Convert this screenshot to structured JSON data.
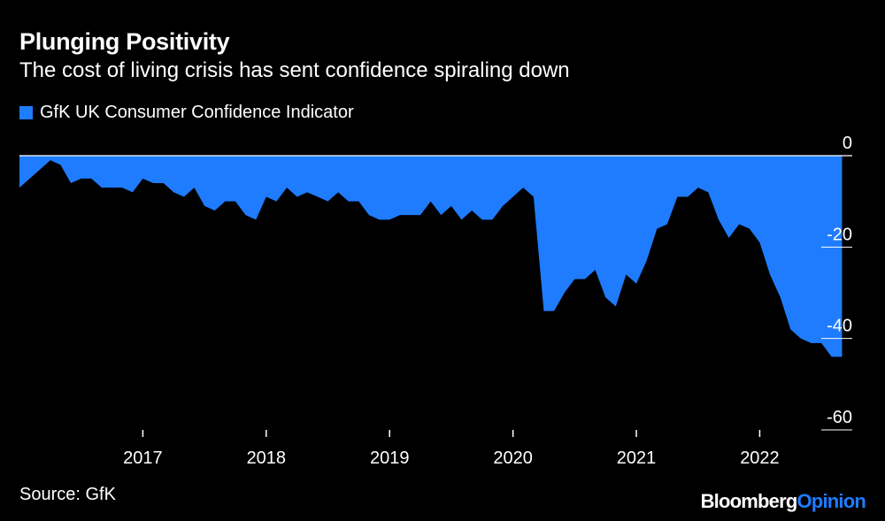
{
  "colors": {
    "background": "#000000",
    "series": "#1f7cff",
    "text": "#ffffff",
    "brand_accent": "#1f7cff"
  },
  "title": "Plunging Positivity",
  "subtitle": "The cost of living crisis has sent confidence spiraling down",
  "legend": {
    "label": "GfK UK Consumer Confidence Indicator"
  },
  "source": "Source: GfK",
  "brand": {
    "part1": "Bloomberg",
    "part2": "Opinion"
  },
  "chart_data": {
    "type": "area",
    "title": "Plunging Positivity",
    "subtitle": "The cost of living crisis has sent confidence spiraling down",
    "xlabel": "",
    "ylabel": "",
    "ylim": [
      -60,
      0
    ],
    "xlim": [
      2016.0,
      2022.75
    ],
    "y_ticks": [
      0,
      -20,
      -40,
      -60
    ],
    "y_tick_labels": [
      "0",
      "-20",
      "-40",
      "-60"
    ],
    "x_ticks": [
      2017,
      2018,
      2019,
      2020,
      2021,
      2022
    ],
    "x_tick_labels": [
      "2017",
      "2018",
      "2019",
      "2020",
      "2021",
      "2022"
    ],
    "series": [
      {
        "name": "GfK UK Consumer Confidence Indicator",
        "x": [
          2016.0,
          2016.083,
          2016.167,
          2016.25,
          2016.333,
          2016.417,
          2016.5,
          2016.583,
          2016.667,
          2016.75,
          2016.833,
          2016.917,
          2017.0,
          2017.083,
          2017.167,
          2017.25,
          2017.333,
          2017.417,
          2017.5,
          2017.583,
          2017.667,
          2017.75,
          2017.833,
          2017.917,
          2018.0,
          2018.083,
          2018.167,
          2018.25,
          2018.333,
          2018.417,
          2018.5,
          2018.583,
          2018.667,
          2018.75,
          2018.833,
          2018.917,
          2019.0,
          2019.083,
          2019.167,
          2019.25,
          2019.333,
          2019.417,
          2019.5,
          2019.583,
          2019.667,
          2019.75,
          2019.833,
          2019.917,
          2020.0,
          2020.083,
          2020.167,
          2020.25,
          2020.333,
          2020.417,
          2020.5,
          2020.583,
          2020.667,
          2020.75,
          2020.833,
          2020.917,
          2021.0,
          2021.083,
          2021.167,
          2021.25,
          2021.333,
          2021.417,
          2021.5,
          2021.583,
          2021.667,
          2021.75,
          2021.833,
          2021.917,
          2022.0,
          2022.083,
          2022.167,
          2022.25,
          2022.333,
          2022.417,
          2022.5,
          2022.583,
          2022.667
        ],
        "values": [
          -7,
          -5,
          -3,
          -1,
          -2,
          -6,
          -5,
          -5,
          -7,
          -7,
          -7,
          -8,
          -5,
          -6,
          -6,
          -8,
          -9,
          -7,
          -11,
          -12,
          -10,
          -10,
          -13,
          -14,
          -9,
          -10,
          -7,
          -9,
          -8,
          -9,
          -10,
          -8,
          -10,
          -10,
          -13,
          -14,
          -14,
          -13,
          -13,
          -13,
          -10,
          -13,
          -11,
          -14,
          -12,
          -14,
          -14,
          -11,
          -9,
          -7,
          -9,
          -34,
          -34,
          -30,
          -27,
          -27,
          -25,
          -31,
          -33,
          -26,
          -28,
          -23,
          -16,
          -15,
          -9,
          -9,
          -7,
          -8,
          -14,
          -18,
          -15,
          -16,
          -19,
          -26,
          -31,
          -38,
          -40,
          -41,
          -41,
          -44,
          -44
        ]
      }
    ]
  }
}
